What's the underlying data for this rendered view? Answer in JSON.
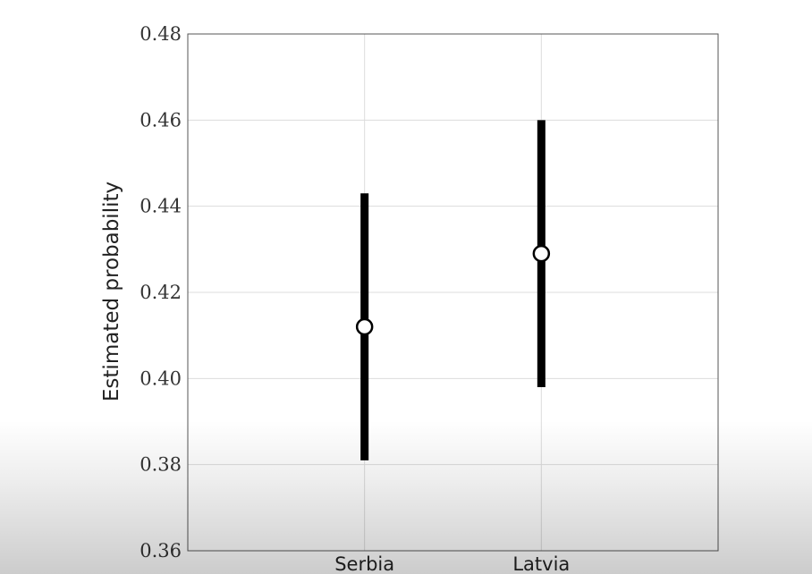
{
  "chart_data": {
    "type": "scatter",
    "categories": [
      "Serbia",
      "Latvia"
    ],
    "values": [
      0.412,
      0.429
    ],
    "lower": [
      0.381,
      0.398
    ],
    "upper": [
      0.443,
      0.46
    ],
    "xlabel": "",
    "ylabel": "Estimated probability",
    "ylim": [
      0.36,
      0.48
    ],
    "yticks": [
      "0.36",
      "0.38",
      "0.40",
      "0.42",
      "0.44",
      "0.46",
      "0.48"
    ],
    "grid": true,
    "legend": "none",
    "colors": {
      "errorbar": "#000000",
      "marker_fill": "#ffffff",
      "marker_edge": "#000000",
      "grid": "#dcdcdc",
      "frame": "#555555"
    }
  }
}
